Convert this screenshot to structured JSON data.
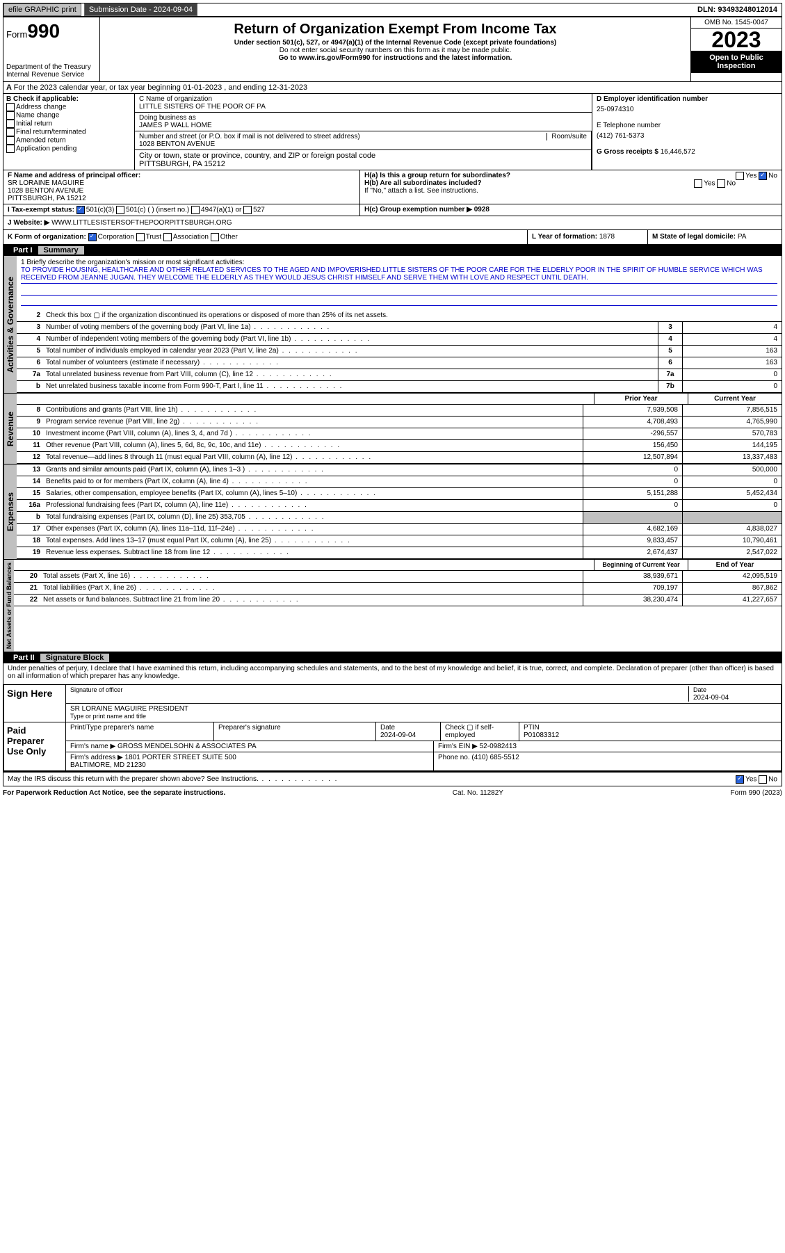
{
  "topbar": {
    "efile": "efile GRAPHIC print",
    "submission_label": "Submission Date - 2024-09-04",
    "dln": "DLN: 93493248012014"
  },
  "header": {
    "form_label": "Form",
    "form_number": "990",
    "dept": "Department of the Treasury\nInternal Revenue Service",
    "title": "Return of Organization Exempt From Income Tax",
    "subtitle": "Under section 501(c), 527, or 4947(a)(1) of the Internal Revenue Code (except private foundations)",
    "warn": "Do not enter social security numbers on this form as it may be made public.",
    "goto": "Go to www.irs.gov/Form990 for instructions and the latest information.",
    "omb": "OMB No. 1545-0047",
    "year": "2023",
    "inspection": "Open to Public Inspection"
  },
  "secA": "For the 2023 calendar year, or tax year beginning 01-01-2023   , and ending 12-31-2023",
  "secB": {
    "label": "B Check if applicable:",
    "opts": [
      "Address change",
      "Name change",
      "Initial return",
      "Final return/terminated",
      "Amended return",
      "Application pending"
    ]
  },
  "secC": {
    "name_label": "C Name of organization",
    "name": "LITTLE SISTERS OF THE POOR OF PA",
    "dba_label": "Doing business as",
    "dba": "JAMES P WALL HOME",
    "street_label": "Number and street (or P.O. box if mail is not delivered to street address)",
    "room_label": "Room/suite",
    "street": "1028 BENTON AVENUE",
    "city_label": "City or town, state or province, country, and ZIP or foreign postal code",
    "city": "PITTSBURGH, PA  15212"
  },
  "secD": {
    "label": "D Employer identification number",
    "value": "25-0974310"
  },
  "secE": {
    "label": "E Telephone number",
    "value": "(412) 761-5373"
  },
  "secG": {
    "label": "G Gross receipts $",
    "value": "16,446,572"
  },
  "secF": {
    "label": "F Name and address of principal officer:",
    "name": "SR LORAINE MAGUIRE",
    "addr1": "1028 BENTON AVENUE",
    "addr2": "PITTSBURGH, PA  15212"
  },
  "secH": {
    "a": "H(a)  Is this a group return for subordinates?",
    "b": "H(b)  Are all subordinates included?",
    "b_note": "If \"No,\" attach a list. See instructions.",
    "c": "H(c)  Group exemption number ▶  0928",
    "yes": "Yes",
    "no": "No"
  },
  "secI": {
    "label": "I  Tax-exempt status:",
    "opts": [
      "501(c)(3)",
      "501(c) (  ) (insert no.)",
      "4947(a)(1) or",
      "527"
    ]
  },
  "secJ": {
    "label": "J  Website: ▶",
    "value": "WWW.LITTLESISTERSOFTHEPOORPITTSBURGH.ORG"
  },
  "secK": {
    "label": "K Form of organization:",
    "opts": [
      "Corporation",
      "Trust",
      "Association",
      "Other"
    ]
  },
  "secL": {
    "label": "L Year of formation:",
    "value": "1878"
  },
  "secM": {
    "label": "M State of legal domicile:",
    "value": "PA"
  },
  "part1": {
    "label": "Part I",
    "title": "Summary"
  },
  "mission": {
    "q": "1  Briefly describe the organization's mission or most significant activities:",
    "text": "TO PROVIDE HOUSING, HEALTHCARE AND OTHER RELATED SERVICES TO THE AGED AND IMPOVERISHED.LITTLE SISTERS OF THE POOR CARE FOR THE ELDERLY POOR IN THE SPIRIT OF HUMBLE SERVICE WHICH WAS RECEIVED FROM JEANNE JUGAN. THEY WELCOME THE ELDERLY AS THEY WOULD JESUS CHRIST HIMSELF AND SERVE THEM WITH LOVE AND RESPECT UNTIL DEATH."
  },
  "governance_lines": [
    {
      "num": "2",
      "desc": "Check this box ▢ if the organization discontinued its operations or disposed of more than 25% of its net assets."
    },
    {
      "num": "3",
      "desc": "Number of voting members of the governing body (Part VI, line 1a)",
      "box": "3",
      "val": "4"
    },
    {
      "num": "4",
      "desc": "Number of independent voting members of the governing body (Part VI, line 1b)",
      "box": "4",
      "val": "4"
    },
    {
      "num": "5",
      "desc": "Total number of individuals employed in calendar year 2023 (Part V, line 2a)",
      "box": "5",
      "val": "163"
    },
    {
      "num": "6",
      "desc": "Total number of volunteers (estimate if necessary)",
      "box": "6",
      "val": "163"
    },
    {
      "num": "7a",
      "desc": "Total unrelated business revenue from Part VIII, column (C), line 12",
      "box": "7a",
      "val": "0"
    },
    {
      "num": "b",
      "desc": "Net unrelated business taxable income from Form 990-T, Part I, line 11",
      "box": "7b",
      "val": "0"
    }
  ],
  "col_headers": {
    "prior": "Prior Year",
    "current": "Current Year"
  },
  "revenue_lines": [
    {
      "num": "8",
      "desc": "Contributions and grants (Part VIII, line 1h)",
      "prior": "7,939,508",
      "cur": "7,856,515"
    },
    {
      "num": "9",
      "desc": "Program service revenue (Part VIII, line 2g)",
      "prior": "4,708,493",
      "cur": "4,765,990"
    },
    {
      "num": "10",
      "desc": "Investment income (Part VIII, column (A), lines 3, 4, and 7d )",
      "prior": "-296,557",
      "cur": "570,783"
    },
    {
      "num": "11",
      "desc": "Other revenue (Part VIII, column (A), lines 5, 6d, 8c, 9c, 10c, and 11e)",
      "prior": "156,450",
      "cur": "144,195"
    },
    {
      "num": "12",
      "desc": "Total revenue—add lines 8 through 11 (must equal Part VIII, column (A), line 12)",
      "prior": "12,507,894",
      "cur": "13,337,483"
    }
  ],
  "expense_lines": [
    {
      "num": "13",
      "desc": "Grants and similar amounts paid (Part IX, column (A), lines 1–3 )",
      "prior": "0",
      "cur": "500,000"
    },
    {
      "num": "14",
      "desc": "Benefits paid to or for members (Part IX, column (A), line 4)",
      "prior": "0",
      "cur": "0"
    },
    {
      "num": "15",
      "desc": "Salaries, other compensation, employee benefits (Part IX, column (A), lines 5–10)",
      "prior": "5,151,288",
      "cur": "5,452,434"
    },
    {
      "num": "16a",
      "desc": "Professional fundraising fees (Part IX, column (A), line 11e)",
      "prior": "0",
      "cur": "0"
    },
    {
      "num": "b",
      "desc": "Total fundraising expenses (Part IX, column (D), line 25) 353,705",
      "prior": "",
      "cur": "",
      "gray": true
    },
    {
      "num": "17",
      "desc": "Other expenses (Part IX, column (A), lines 11a–11d, 11f–24e)",
      "prior": "4,682,169",
      "cur": "4,838,027"
    },
    {
      "num": "18",
      "desc": "Total expenses. Add lines 13–17 (must equal Part IX, column (A), line 25)",
      "prior": "9,833,457",
      "cur": "10,790,461"
    },
    {
      "num": "19",
      "desc": "Revenue less expenses. Subtract line 18 from line 12",
      "prior": "2,674,437",
      "cur": "2,547,022"
    }
  ],
  "netassets_headers": {
    "begin": "Beginning of Current Year",
    "end": "End of Year"
  },
  "netassets_lines": [
    {
      "num": "20",
      "desc": "Total assets (Part X, line 16)",
      "prior": "38,939,671",
      "cur": "42,095,519"
    },
    {
      "num": "21",
      "desc": "Total liabilities (Part X, line 26)",
      "prior": "709,197",
      "cur": "867,862"
    },
    {
      "num": "22",
      "desc": "Net assets or fund balances. Subtract line 21 from line 20",
      "prior": "38,230,474",
      "cur": "41,227,657"
    }
  ],
  "part2": {
    "label": "Part II",
    "title": "Signature Block"
  },
  "penalties": "Under penalties of perjury, I declare that I have examined this return, including accompanying schedules and statements, and to the best of my knowledge and belief, it is true, correct, and complete. Declaration of preparer (other than officer) is based on all information of which preparer has any knowledge.",
  "sign": {
    "here": "Sign Here",
    "sig_label": "Signature of officer",
    "date": "2024-09-04",
    "date_label": "Date",
    "name": "SR LORAINE MAGUIRE  PRESIDENT",
    "name_label": "Type or print name and title"
  },
  "preparer": {
    "label": "Paid Preparer Use Only",
    "name_hdr": "Print/Type preparer's name",
    "sig_hdr": "Preparer's signature",
    "date_hdr": "Date",
    "date": "2024-09-04",
    "check_hdr": "Check ▢ if self-employed",
    "ptin_hdr": "PTIN",
    "ptin": "P01083312",
    "firm_name_label": "Firm's name   ▶",
    "firm_name": "GROSS MENDELSOHN & ASSOCIATES PA",
    "firm_ein_label": "Firm's EIN ▶",
    "firm_ein": "52-0982413",
    "firm_addr_label": "Firm's address ▶",
    "firm_addr": "1801 PORTER STREET SUITE 500\nBALTIMORE, MD  21230",
    "phone_label": "Phone no.",
    "phone": "(410) 685-5512"
  },
  "discuss": "May the IRS discuss this return with the preparer shown above? See Instructions.",
  "footer": {
    "left": "For Paperwork Reduction Act Notice, see the separate instructions.",
    "mid": "Cat. No. 11282Y",
    "right": "Form 990 (2023)"
  },
  "vert_labels": {
    "gov": "Activities & Governance",
    "rev": "Revenue",
    "exp": "Expenses",
    "net": "Net Assets or Fund Balances"
  }
}
